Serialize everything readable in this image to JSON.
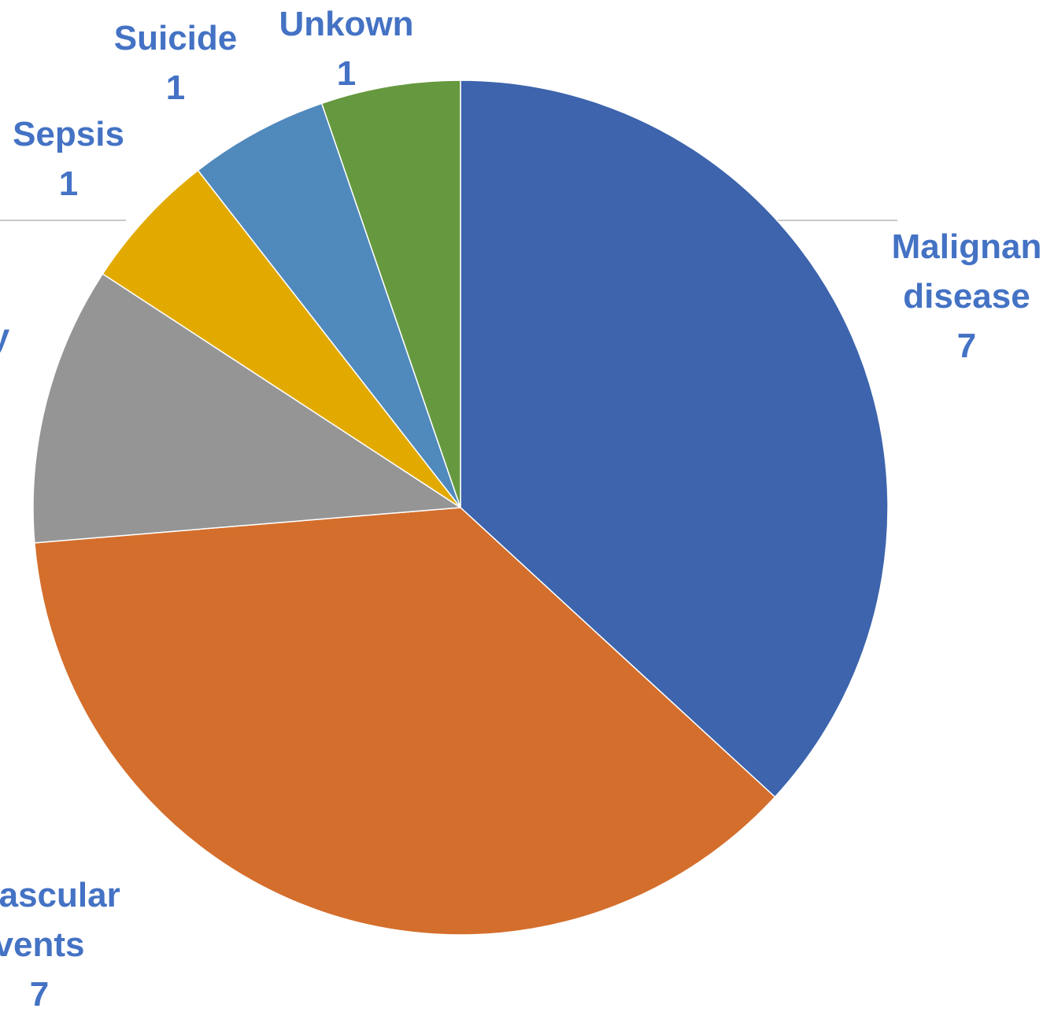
{
  "chart_data": {
    "type": "pie",
    "start_angle_deg": 0,
    "direction": "clockwise",
    "slices": [
      {
        "label_lines": [
          "Malignan",
          "disease"
        ],
        "value": 7,
        "color": "#3D64AC"
      },
      {
        "label_lines": [
          "ovascular",
          "vents"
        ],
        "value": 7,
        "color": "#D46E2C"
      },
      {
        "label_lines": [
          "y"
        ],
        "value": 2,
        "color": "#959595"
      },
      {
        "label_lines": [
          "Sepsis"
        ],
        "value": 1,
        "color": "#E2AA00"
      },
      {
        "label_lines": [
          "Suicide"
        ],
        "value": 1,
        "color": "#5089BC"
      },
      {
        "label_lines": [
          "Unkown"
        ],
        "value": 1,
        "color": "#66993F"
      }
    ],
    "value_labels": [
      "7",
      "7",
      "",
      "1",
      "1",
      "1"
    ],
    "label_color": "#4472C4"
  }
}
